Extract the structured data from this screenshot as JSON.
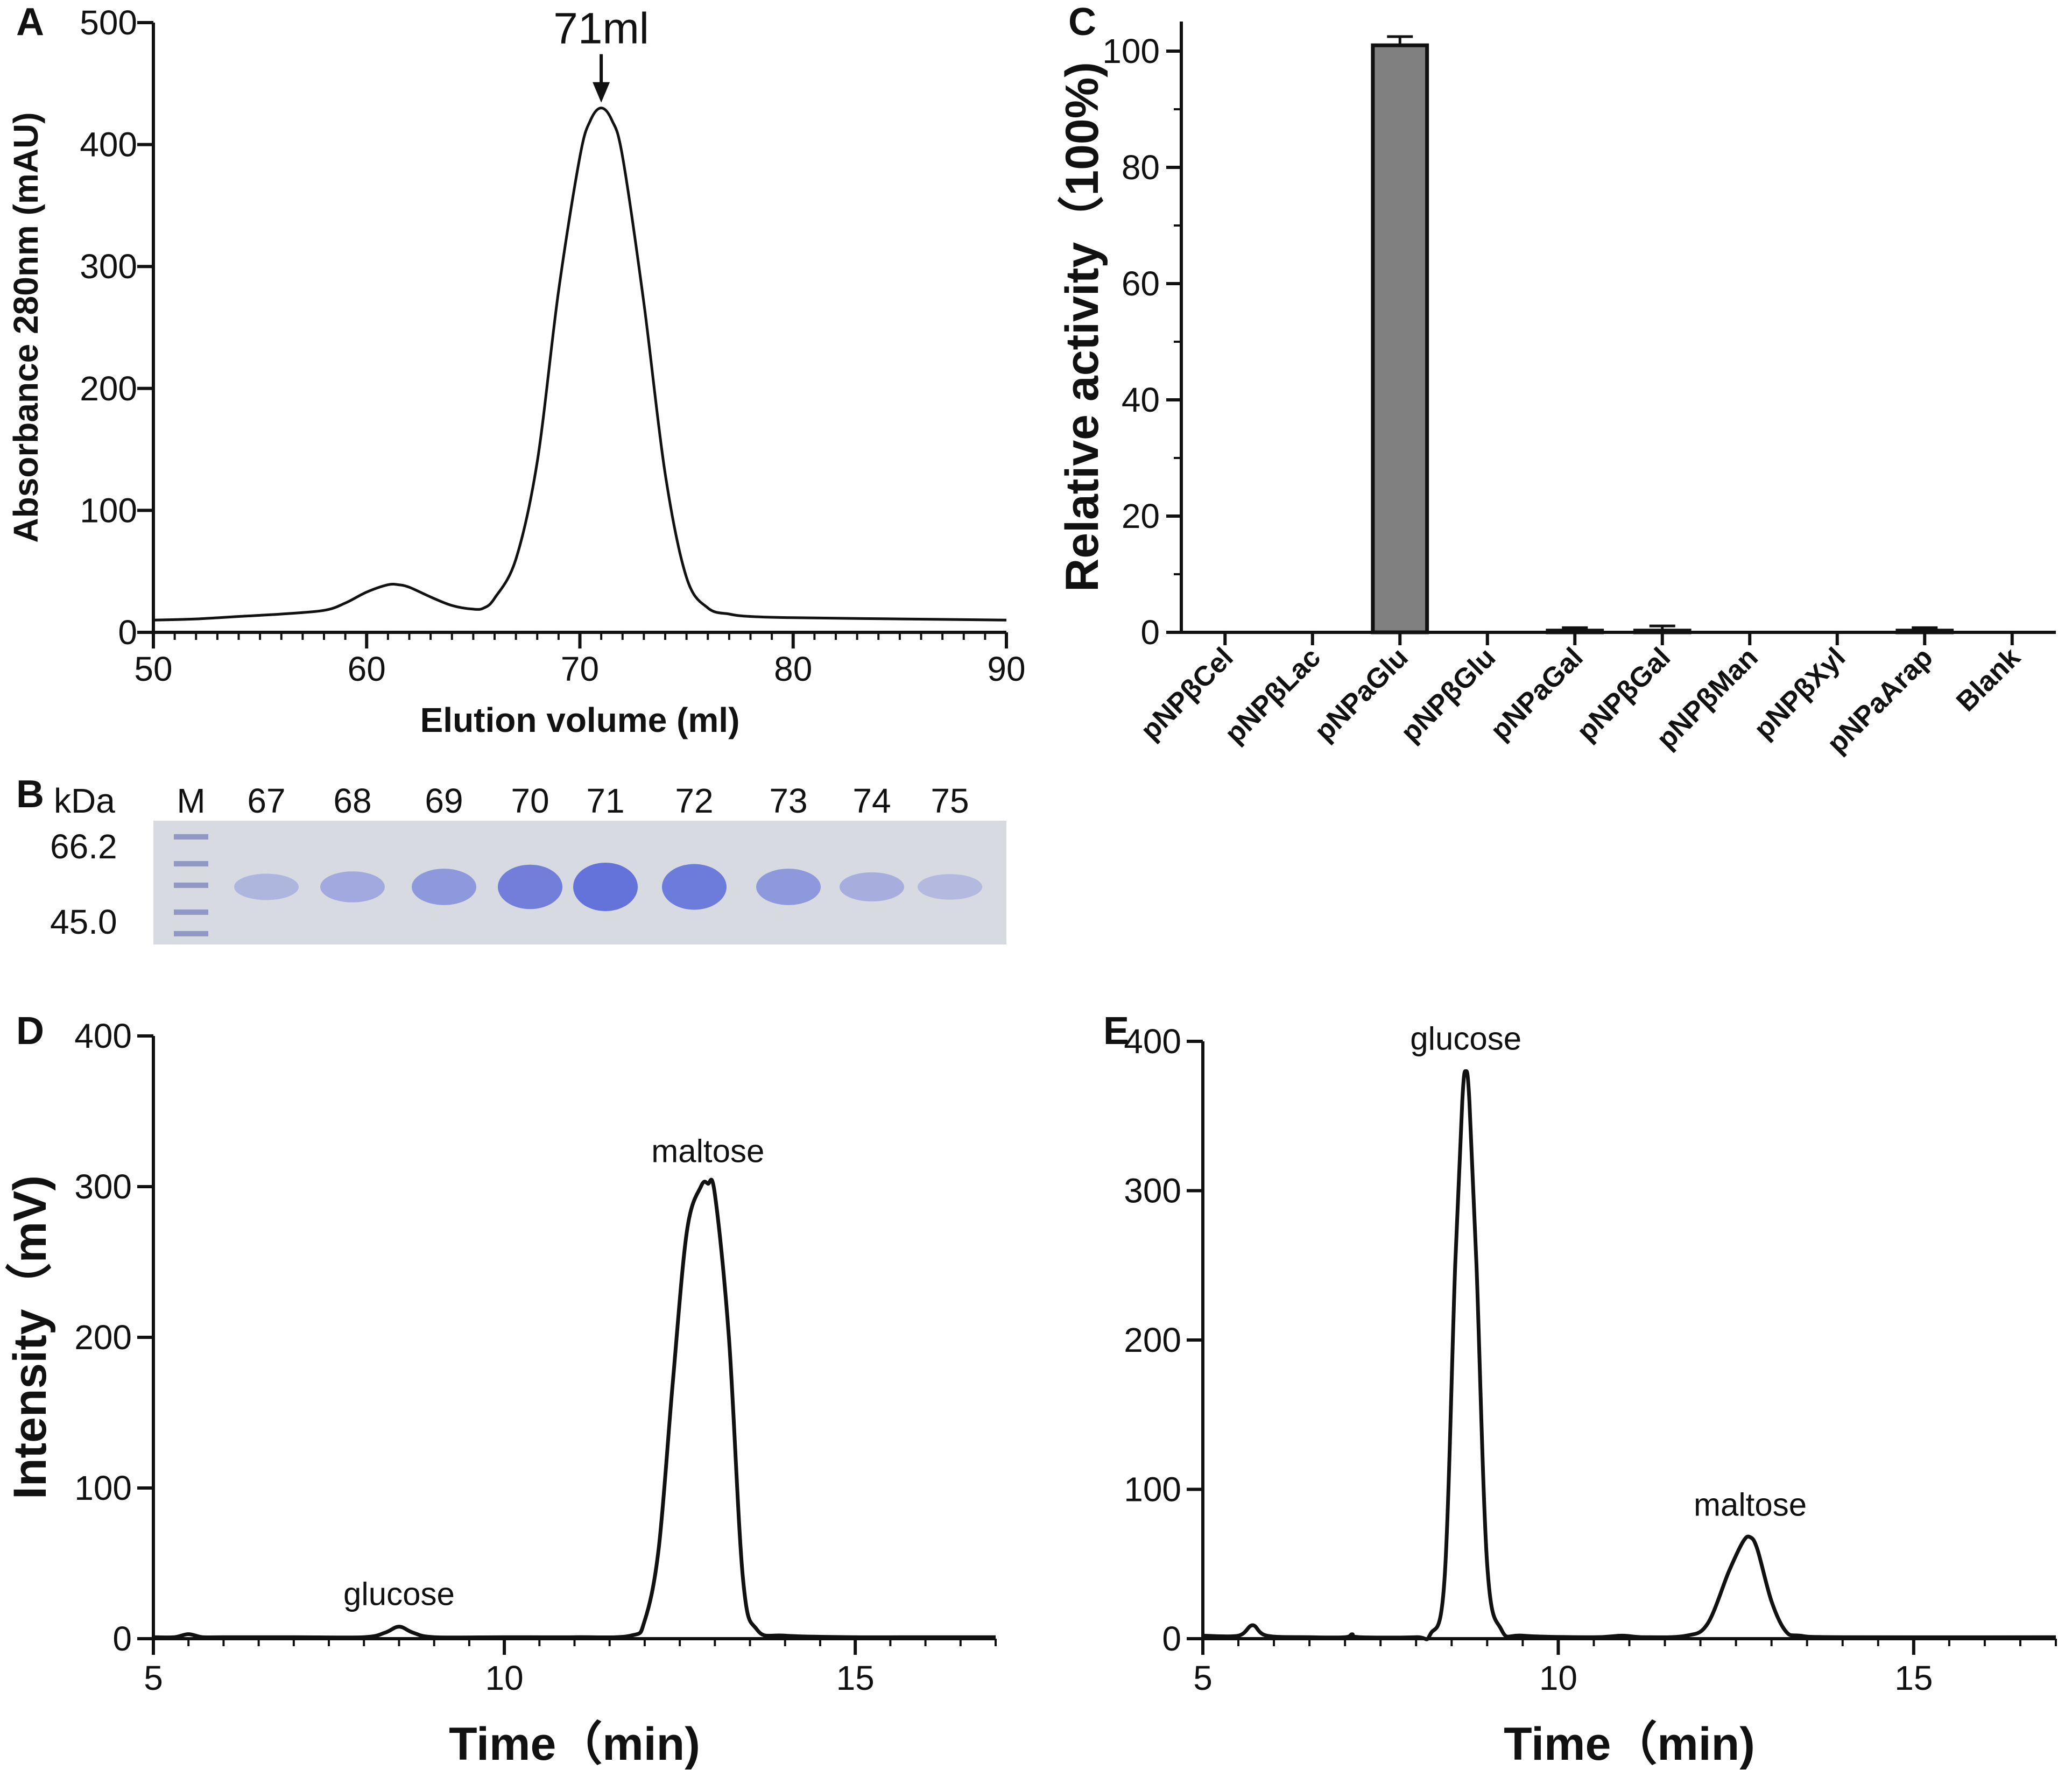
{
  "panels": {
    "A": {
      "letter": "A"
    },
    "B": {
      "letter": "B"
    },
    "C": {
      "letter": "C"
    },
    "D": {
      "letter": "D"
    },
    "E": {
      "letter": "E"
    }
  },
  "gel": {
    "header": "kDa",
    "lanes": [
      "M",
      "67",
      "68",
      "69",
      "70",
      "71",
      "72",
      "73",
      "74",
      "75"
    ],
    "markers": [
      "66.2",
      "45.0"
    ],
    "band_intensity": [
      0.18,
      0.35,
      0.55,
      0.85,
      1.0,
      0.9,
      0.55,
      0.28,
      0.15
    ],
    "colors": {
      "gel": "#d8dae2",
      "band": "#5a6ad8",
      "marker": "#8890c0"
    }
  },
  "chart_data": [
    {
      "id": "A",
      "type": "line",
      "title": "",
      "xlabel": "Elution volume (ml)",
      "ylabel": "Absorbance 280nm (mAU)",
      "xlim": [
        50,
        90
      ],
      "ylim": [
        0,
        500
      ],
      "xticks": [
        50,
        60,
        70,
        80,
        90
      ],
      "yticks": [
        0,
        100,
        200,
        300,
        400,
        500
      ],
      "annotations": [
        {
          "text": "71ml",
          "x": 71,
          "y": 430,
          "arrow": true
        }
      ],
      "series": [
        {
          "name": "A280",
          "x": [
            50,
            52,
            54,
            56,
            58,
            59,
            60,
            61,
            61.5,
            62,
            63,
            64,
            65,
            65.5,
            66,
            67,
            68,
            69,
            70,
            70.5,
            71,
            71.5,
            72,
            73,
            74,
            75,
            76,
            77,
            78,
            80,
            85,
            90
          ],
          "y": [
            10,
            11,
            13,
            15,
            18,
            24,
            33,
            39,
            39,
            37,
            29,
            22,
            19,
            20,
            28,
            60,
            140,
            280,
            390,
            420,
            430,
            420,
            390,
            270,
            130,
            45,
            20,
            15,
            13,
            12,
            11,
            10
          ]
        }
      ]
    },
    {
      "id": "C",
      "type": "bar",
      "title": "",
      "xlabel": "",
      "ylabel": "Relative activity（100%)",
      "categories": [
        "pNPβCel",
        "pNPβLac",
        "pNPaGlu",
        "pNPβGlu",
        "pNPaGal",
        "pNPβGal",
        "pNPβMan",
        "pNPβXyl",
        "pNPaArap",
        "Blank"
      ],
      "values": [
        0,
        0,
        101,
        0,
        0.3,
        0.3,
        0,
        0,
        0.3,
        0
      ],
      "errors": [
        0,
        0,
        1.5,
        0,
        0.5,
        0.8,
        0,
        0,
        0.5,
        0
      ],
      "ylim": [
        0,
        100
      ],
      "yticks": [
        0,
        20,
        40,
        60,
        80,
        100
      ]
    },
    {
      "id": "D",
      "type": "line",
      "title": "",
      "xlabel": "Time（min)",
      "ylabel": "Intensity（mV)",
      "xlim": [
        5,
        17
      ],
      "ylim": [
        0,
        400
      ],
      "xticks": [
        5,
        10,
        15
      ],
      "yticks": [
        0,
        100,
        200,
        300,
        400
      ],
      "annotations": [
        {
          "text": "glucose",
          "x": 8.5,
          "y": 8
        },
        {
          "text": "maltose",
          "x": 12.9,
          "y": 302
        }
      ],
      "series": [
        {
          "name": "intensity",
          "x": [
            5,
            5.3,
            5.5,
            5.7,
            6,
            7,
            8,
            8.3,
            8.5,
            8.7,
            9,
            10,
            11,
            11.8,
            12,
            12.2,
            12.4,
            12.6,
            12.8,
            12.9,
            13.0,
            13.2,
            13.4,
            13.6,
            14,
            15,
            16,
            17
          ],
          "y": [
            1,
            1,
            3,
            1,
            1,
            1,
            1,
            4,
            8,
            4,
            1,
            1,
            1,
            2,
            12,
            60,
            170,
            270,
            300,
            302,
            295,
            200,
            40,
            6,
            2,
            1,
            1,
            1
          ]
        }
      ]
    },
    {
      "id": "E",
      "type": "line",
      "title": "",
      "xlabel": "Time（min)",
      "ylabel": "",
      "xlim": [
        5,
        17
      ],
      "ylim": [
        0,
        400
      ],
      "xticks": [
        5,
        10,
        15
      ],
      "yticks": [
        0,
        100,
        200,
        300,
        400
      ],
      "annotations": [
        {
          "text": "glucose",
          "x": 8.7,
          "y": 380
        },
        {
          "text": "maltose",
          "x": 12.7,
          "y": 68
        }
      ],
      "series": [
        {
          "name": "intensity",
          "x": [
            5,
            5.5,
            5.7,
            5.9,
            6.5,
            7.0,
            7.1,
            7.2,
            8.0,
            8.2,
            8.4,
            8.55,
            8.65,
            8.7,
            8.75,
            8.85,
            9.0,
            9.2,
            9.5,
            10.5,
            10.9,
            11.2,
            11.8,
            12.1,
            12.4,
            12.6,
            12.7,
            12.8,
            13.0,
            13.2,
            13.4,
            14,
            17
          ],
          "y": [
            2,
            2,
            9,
            2,
            1,
            1,
            3,
            1,
            1,
            3,
            40,
            250,
            360,
            380,
            360,
            250,
            50,
            6,
            2,
            1,
            2,
            1,
            2,
            10,
            45,
            65,
            68,
            60,
            25,
            5,
            2,
            1,
            1
          ]
        }
      ]
    }
  ]
}
